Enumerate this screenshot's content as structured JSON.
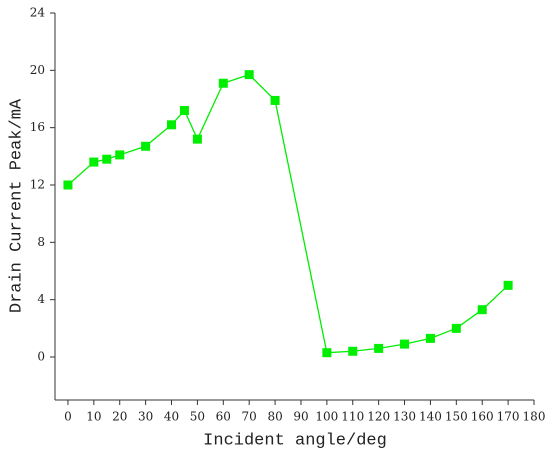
{
  "chart_data": {
    "type": "line",
    "x_label": "Incident angle/deg",
    "y_label": "Drain Current Peak/mA",
    "x": [
      0,
      10,
      15,
      20,
      30,
      40,
      45,
      50,
      60,
      70,
      80,
      100,
      110,
      120,
      130,
      140,
      150,
      160,
      170
    ],
    "series": [
      {
        "color": "#00ee00",
        "values": [
          12.0,
          13.6,
          13.8,
          14.1,
          14.7,
          16.2,
          17.2,
          15.2,
          19.1,
          19.7,
          17.9,
          0.3,
          0.4,
          0.6,
          0.9,
          1.3,
          2.0,
          3.3,
          5.0
        ]
      }
    ],
    "xlim": [
      -5,
      180
    ],
    "xticks": [
      0,
      10,
      20,
      30,
      40,
      50,
      60,
      70,
      80,
      90,
      100,
      110,
      120,
      130,
      140,
      150,
      160,
      170,
      180
    ],
    "ylim": [
      -3,
      24
    ],
    "yticks": [
      0,
      4,
      8,
      12,
      16,
      20,
      24
    ],
    "grid": false
  }
}
